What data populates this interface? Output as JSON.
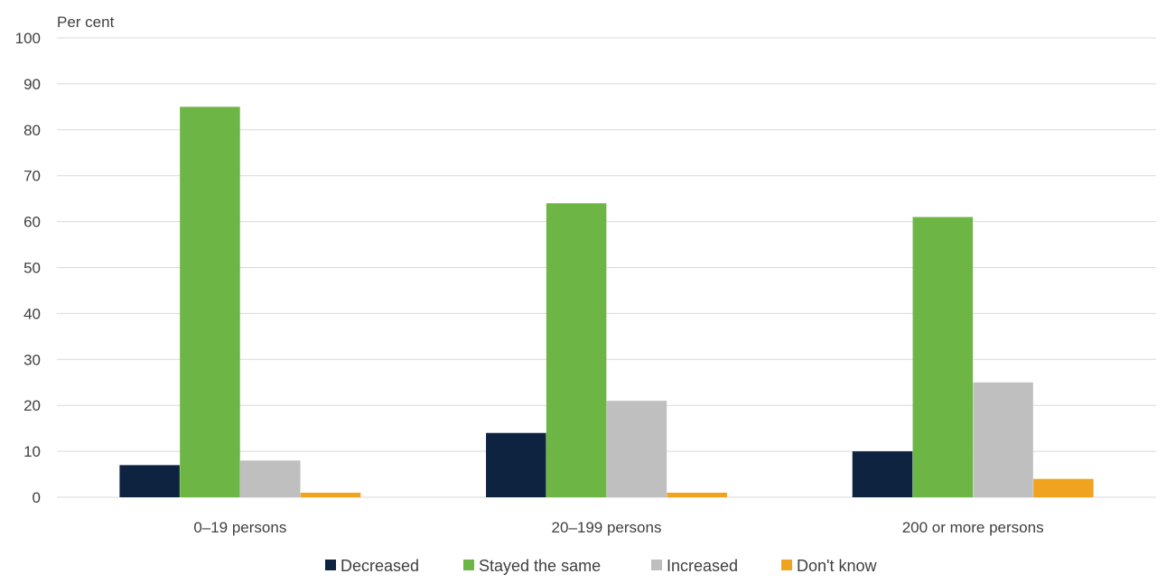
{
  "chart_data": {
    "type": "bar",
    "ylabel": "Per cent",
    "ylim": [
      0,
      100
    ],
    "yticks": [
      0,
      10,
      20,
      30,
      40,
      50,
      60,
      70,
      80,
      90,
      100
    ],
    "grid": true,
    "legend_position": "bottom",
    "categories": [
      "0–19 persons",
      "20–199 persons",
      "200 or more persons"
    ],
    "series": [
      {
        "name": "Decreased",
        "color": "#0e2340",
        "values": [
          7,
          14,
          10
        ]
      },
      {
        "name": "Stayed the same",
        "color": "#6db545",
        "values": [
          85,
          64,
          61
        ]
      },
      {
        "name": "Increased",
        "color": "#bfbfbf",
        "values": [
          8,
          21,
          25
        ]
      },
      {
        "name": "Don't know",
        "color": "#f0a31e",
        "values": [
          1,
          1,
          4
        ]
      }
    ]
  }
}
